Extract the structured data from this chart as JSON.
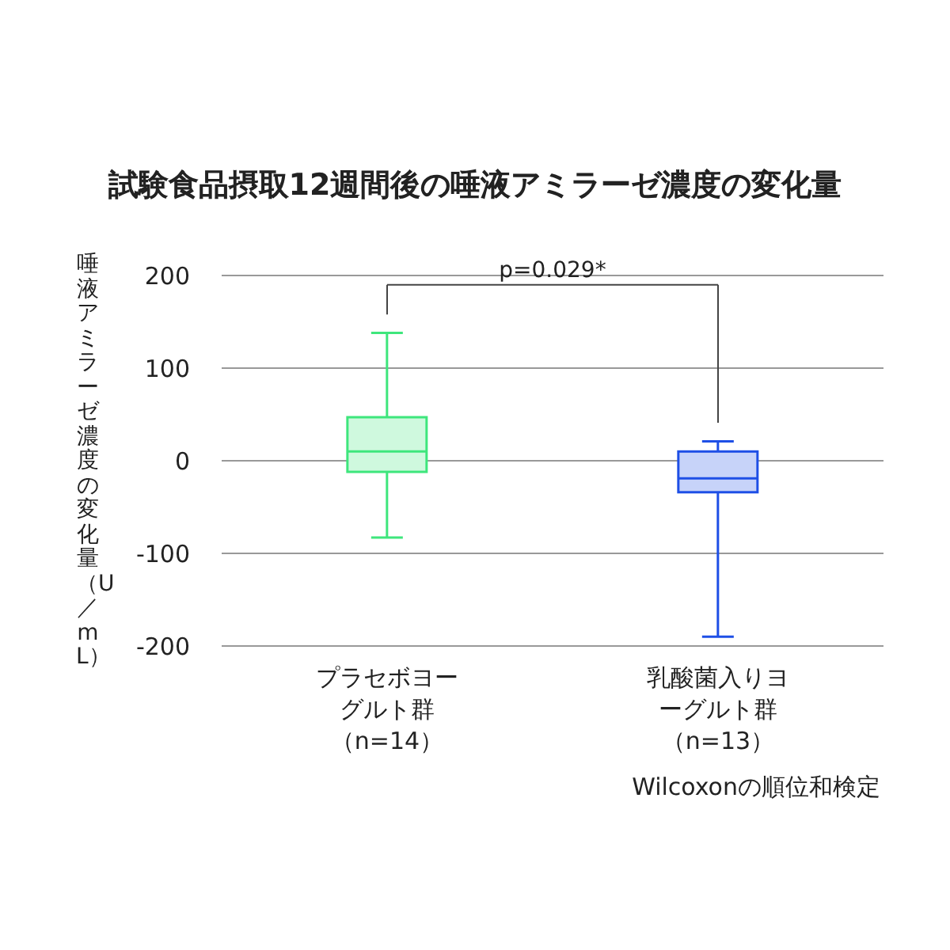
{
  "chart_data": {
    "type": "box",
    "title": "試験食品摂取12週間後の唾液アミラーゼ濃度の変化量",
    "ylabel": "唾液アミラーゼ濃度の変化量（U／mL）",
    "categories": [
      "プラセボヨーグルト群（n=14）",
      "乳酸菌入りヨーグルト群（n=13）"
    ],
    "boxes": [
      {
        "low": -83,
        "q1": -12,
        "median": 10,
        "q3": 47,
        "high": 138
      },
      {
        "low": -190,
        "q1": -34,
        "median": -19,
        "q3": 10,
        "high": 21
      }
    ],
    "colors": [
      "#3ee67c",
      "#1e4fe6"
    ],
    "ylim": [
      -200,
      200
    ],
    "yticks": [
      -200,
      -100,
      0,
      100,
      200
    ],
    "grid": "y",
    "annotations": [
      "p=0.029*",
      "Wilcoxonの順位和検定"
    ]
  }
}
